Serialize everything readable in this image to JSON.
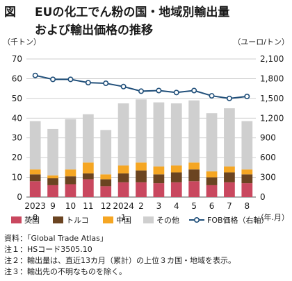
{
  "title": {
    "figure_label": "図",
    "line1": "EUの化工でん粉の国・地域別輸出量",
    "line2": "および輸出価格の推移"
  },
  "chart_data": {
    "type": "bar",
    "stacked": true,
    "categories": [
      "2023\n.8",
      "9",
      "10",
      "11",
      "12",
      "2024\n.1",
      "2",
      "3",
      "4",
      "5",
      "6",
      "7",
      "8"
    ],
    "series": [
      {
        "name": "英国",
        "color": "#c9485f",
        "values": [
          8.0,
          6.0,
          6.5,
          9.0,
          5.5,
          7.5,
          7.5,
          7.0,
          7.5,
          8.0,
          6.0,
          7.5,
          7.0
        ]
      },
      {
        "name": "トルコ",
        "color": "#6b4421",
        "values": [
          3.5,
          3.5,
          4.0,
          3.0,
          3.5,
          4.5,
          6.0,
          4.5,
          5.0,
          6.0,
          4.0,
          5.0,
          4.5
        ]
      },
      {
        "name": "中国",
        "color": "#f5a623",
        "values": [
          2.5,
          1.5,
          3.5,
          5.5,
          2.5,
          4.0,
          4.0,
          4.0,
          3.5,
          3.5,
          3.0,
          3.0,
          2.5
        ]
      },
      {
        "name": "その他",
        "color": "#cfcfcf",
        "values": [
          24.5,
          23.5,
          25.5,
          24.5,
          22.5,
          31.5,
          32.0,
          32.5,
          31.5,
          31.5,
          29.5,
          29.5,
          24.5
        ]
      }
    ],
    "line_series": {
      "name": "FOB価格（右軸）",
      "color": "#1f4e79",
      "axis": "right",
      "values": [
        1850,
        1790,
        1790,
        1740,
        1730,
        1680,
        1610,
        1620,
        1590,
        1620,
        1540,
        1500,
        1530
      ]
    },
    "y_left": {
      "unit": "（千トン）",
      "ylim": [
        0,
        70
      ],
      "ticks": [
        0,
        10,
        20,
        30,
        40,
        50,
        60,
        70
      ]
    },
    "y_right": {
      "unit": "（ユーロ/トン）",
      "ylim": [
        0,
        2100
      ],
      "ticks": [
        "0",
        "300",
        "600",
        "900",
        "1,200",
        "1,500",
        "1,800",
        "2,100"
      ]
    },
    "x_unit": "（年.月）",
    "legend": {
      "position": "bottom",
      "entries": [
        "英国",
        "トルコ",
        "中国",
        "その他",
        "FOB価格（右軸）"
      ]
    },
    "grid": true
  },
  "notes": [
    "資料：「Global Trade Atlas」",
    "注１：HSコード3505.10",
    "注２：輸出量は、直近13カ月（累計）の上位３カ国・地域を表示。",
    "注３：輸出先の不明なものを除く。"
  ]
}
